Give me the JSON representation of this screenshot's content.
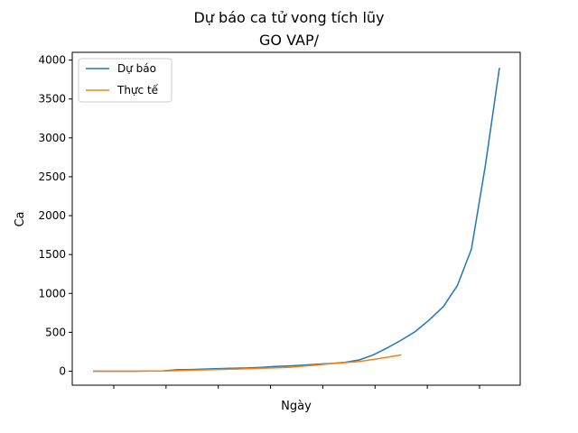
{
  "chart_data": {
    "type": "line",
    "title": "Dự báo ca tử vong tích lũy",
    "subtitle": "GO VAP/",
    "xlabel": "Ngày",
    "ylabel": "Ca",
    "ylim": [
      -180,
      4100
    ],
    "yticks": [
      0,
      500,
      1000,
      1500,
      2000,
      2500,
      3000,
      3500,
      4000
    ],
    "x_tick_count": 8,
    "x_tick_labels_shown": false,
    "grid": false,
    "legend_position": "upper-left",
    "series": [
      {
        "name": "Dự báo",
        "color": "#1f77b4",
        "values": [
          0,
          0,
          0,
          0,
          2,
          5,
          18,
          22,
          28,
          33,
          38,
          42,
          50,
          60,
          68,
          78,
          90,
          100,
          115,
          145,
          210,
          300,
          400,
          510,
          660,
          830,
          1100,
          1570,
          2650,
          3900
        ]
      },
      {
        "name": "Thực tế",
        "color": "#ff7f0e",
        "values": [
          0,
          0,
          0,
          0,
          2,
          3,
          7,
          12,
          17,
          22,
          27,
          32,
          38,
          44,
          50,
          65,
          80,
          97,
          110,
          125,
          150,
          180,
          210
        ]
      }
    ]
  }
}
